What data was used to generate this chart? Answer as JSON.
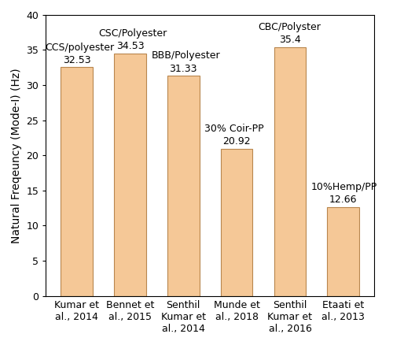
{
  "categories": [
    "Kumar et\nal., 2014",
    "Bennet et\nal., 2015",
    "Senthil\nKumar et\nal., 2014",
    "Munde et\nal., 2018",
    "Senthil\nKumar et\nal., 2016",
    "Etaati et\nal., 2013"
  ],
  "values": [
    32.53,
    34.53,
    31.33,
    20.92,
    35.4,
    12.66
  ],
  "bar_color": "#F5C897",
  "bar_edgecolor": "#B8864E",
  "mat_labels": [
    "CCS/polyester",
    "CSC/Polyester",
    "BBB/Polyester",
    "30% Coir-PP",
    "CBC/Polyster",
    "10%Hemp/PP"
  ],
  "value_labels": [
    "32.53",
    "34.53",
    "31.33",
    "20.92",
    "35.4",
    "12.66"
  ],
  "ylabel": "Natural Freqeuncy (Mode-I) (Hz)",
  "ylim": [
    0,
    40
  ],
  "yticks": [
    0,
    5,
    10,
    15,
    20,
    25,
    30,
    35,
    40
  ],
  "ylabel_fontsize": 10,
  "tick_fontsize": 9,
  "value_fontsize": 9,
  "annotation_fontsize": 9,
  "bar_width": 0.6,
  "background_color": "#ffffff"
}
